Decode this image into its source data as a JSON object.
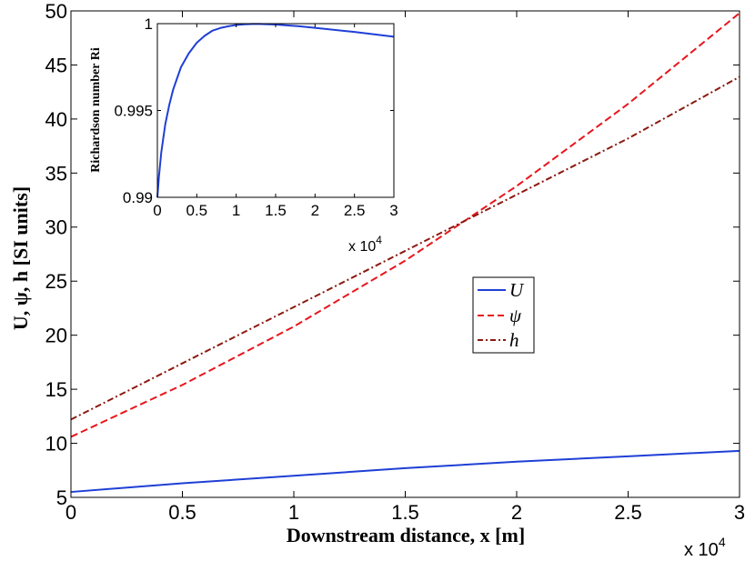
{
  "chart_data": [
    {
      "type": "line",
      "xlabel": "Downstream distance, x [m]",
      "ylabel": "U, ψ, h [SI units]",
      "x_multiplier_label": "x 10",
      "x_multiplier_exp": "4",
      "xlim": [
        0,
        3
      ],
      "ylim": [
        5,
        50
      ],
      "x_ticks": [
        0,
        0.5,
        1,
        1.5,
        2,
        2.5,
        3
      ],
      "x_tick_labels": [
        "0",
        "0.5",
        "1",
        "1.5",
        "2",
        "2.5",
        "3"
      ],
      "y_ticks": [
        5,
        10,
        15,
        20,
        25,
        30,
        35,
        40,
        45,
        50
      ],
      "y_tick_labels": [
        "5",
        "10",
        "15",
        "20",
        "25",
        "30",
        "35",
        "40",
        "45",
        "50"
      ],
      "legend": {
        "position": "center-right",
        "entries": [
          "U",
          "ψ",
          "h"
        ]
      },
      "series": [
        {
          "name": "U",
          "color": "#1f3fd6",
          "dash": "solid",
          "x": [
            0,
            0.5,
            1,
            1.5,
            2,
            2.5,
            3
          ],
          "y": [
            5.5,
            6.3,
            7.0,
            7.7,
            8.3,
            8.8,
            9.3
          ]
        },
        {
          "name": "ψ",
          "color": "#e8161c",
          "dash": "dashed",
          "x": [
            0,
            0.5,
            1,
            1.5,
            2,
            2.5,
            3
          ],
          "y": [
            10.6,
            15.4,
            20.8,
            26.9,
            33.8,
            41.4,
            49.8
          ]
        },
        {
          "name": "h",
          "color": "#8b1a10",
          "dash": "dashdot",
          "x": [
            0,
            0.5,
            1,
            1.5,
            2,
            2.5,
            3
          ],
          "y": [
            12.2,
            17.4,
            22.6,
            27.8,
            33.0,
            38.2,
            43.9
          ]
        }
      ]
    },
    {
      "type": "line",
      "inset": true,
      "xlabel": "",
      "ylabel": "Richardson number Ri",
      "x_multiplier_label": "x 10",
      "x_multiplier_exp": "4",
      "xlim": [
        0,
        3
      ],
      "ylim": [
        0.99,
        1.0
      ],
      "x_ticks": [
        0,
        0.5,
        1,
        1.5,
        2,
        2.5,
        3
      ],
      "x_tick_labels": [
        "0",
        "0.5",
        "1",
        "1.5",
        "2",
        "2.5",
        "3"
      ],
      "y_ticks": [
        0.99,
        0.995,
        1.0
      ],
      "y_tick_labels": [
        "0.99",
        "0.995",
        "1"
      ],
      "series": [
        {
          "name": "Ri",
          "color": "#1f3fd6",
          "dash": "solid",
          "x": [
            0,
            0.02,
            0.05,
            0.1,
            0.15,
            0.2,
            0.3,
            0.4,
            0.5,
            0.6,
            0.7,
            0.8,
            0.9,
            1.0,
            1.1,
            1.2,
            1.3,
            1.5,
            1.8,
            2.0,
            2.5,
            3.0
          ],
          "y": [
            0.99,
            0.9912,
            0.9926,
            0.9942,
            0.9953,
            0.9962,
            0.9975,
            0.9983,
            0.9989,
            0.9993,
            0.9996,
            0.99975,
            0.99985,
            0.99992,
            0.99996,
            0.99998,
            0.99998,
            0.99995,
            0.99985,
            0.99976,
            0.99952,
            0.99925
          ]
        }
      ]
    }
  ]
}
